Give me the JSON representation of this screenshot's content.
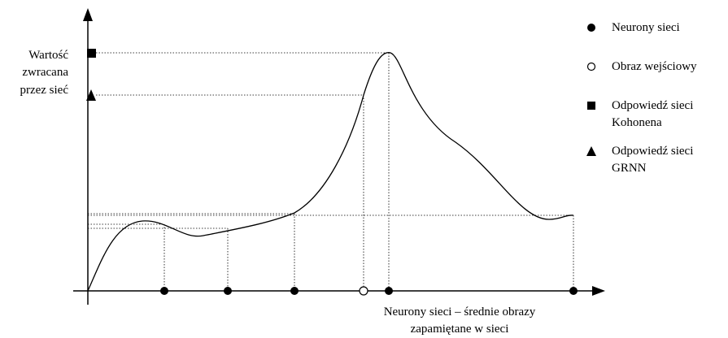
{
  "y_axis_label": [
    "Wartość",
    "zwracana",
    "przez sieć"
  ],
  "x_axis_label": [
    "Neurony sieci – średnie obrazy",
    "zapamiętane w sieci"
  ],
  "legend": [
    {
      "label": [
        "Neurony sieci"
      ]
    },
    {
      "label": [
        "Obraz wejściowy"
      ]
    },
    {
      "label": [
        "Odpowiedź sieci",
        "Kohonena"
      ]
    },
    {
      "label": [
        "Odpowiedź sieci",
        "GRNN"
      ]
    }
  ]
}
